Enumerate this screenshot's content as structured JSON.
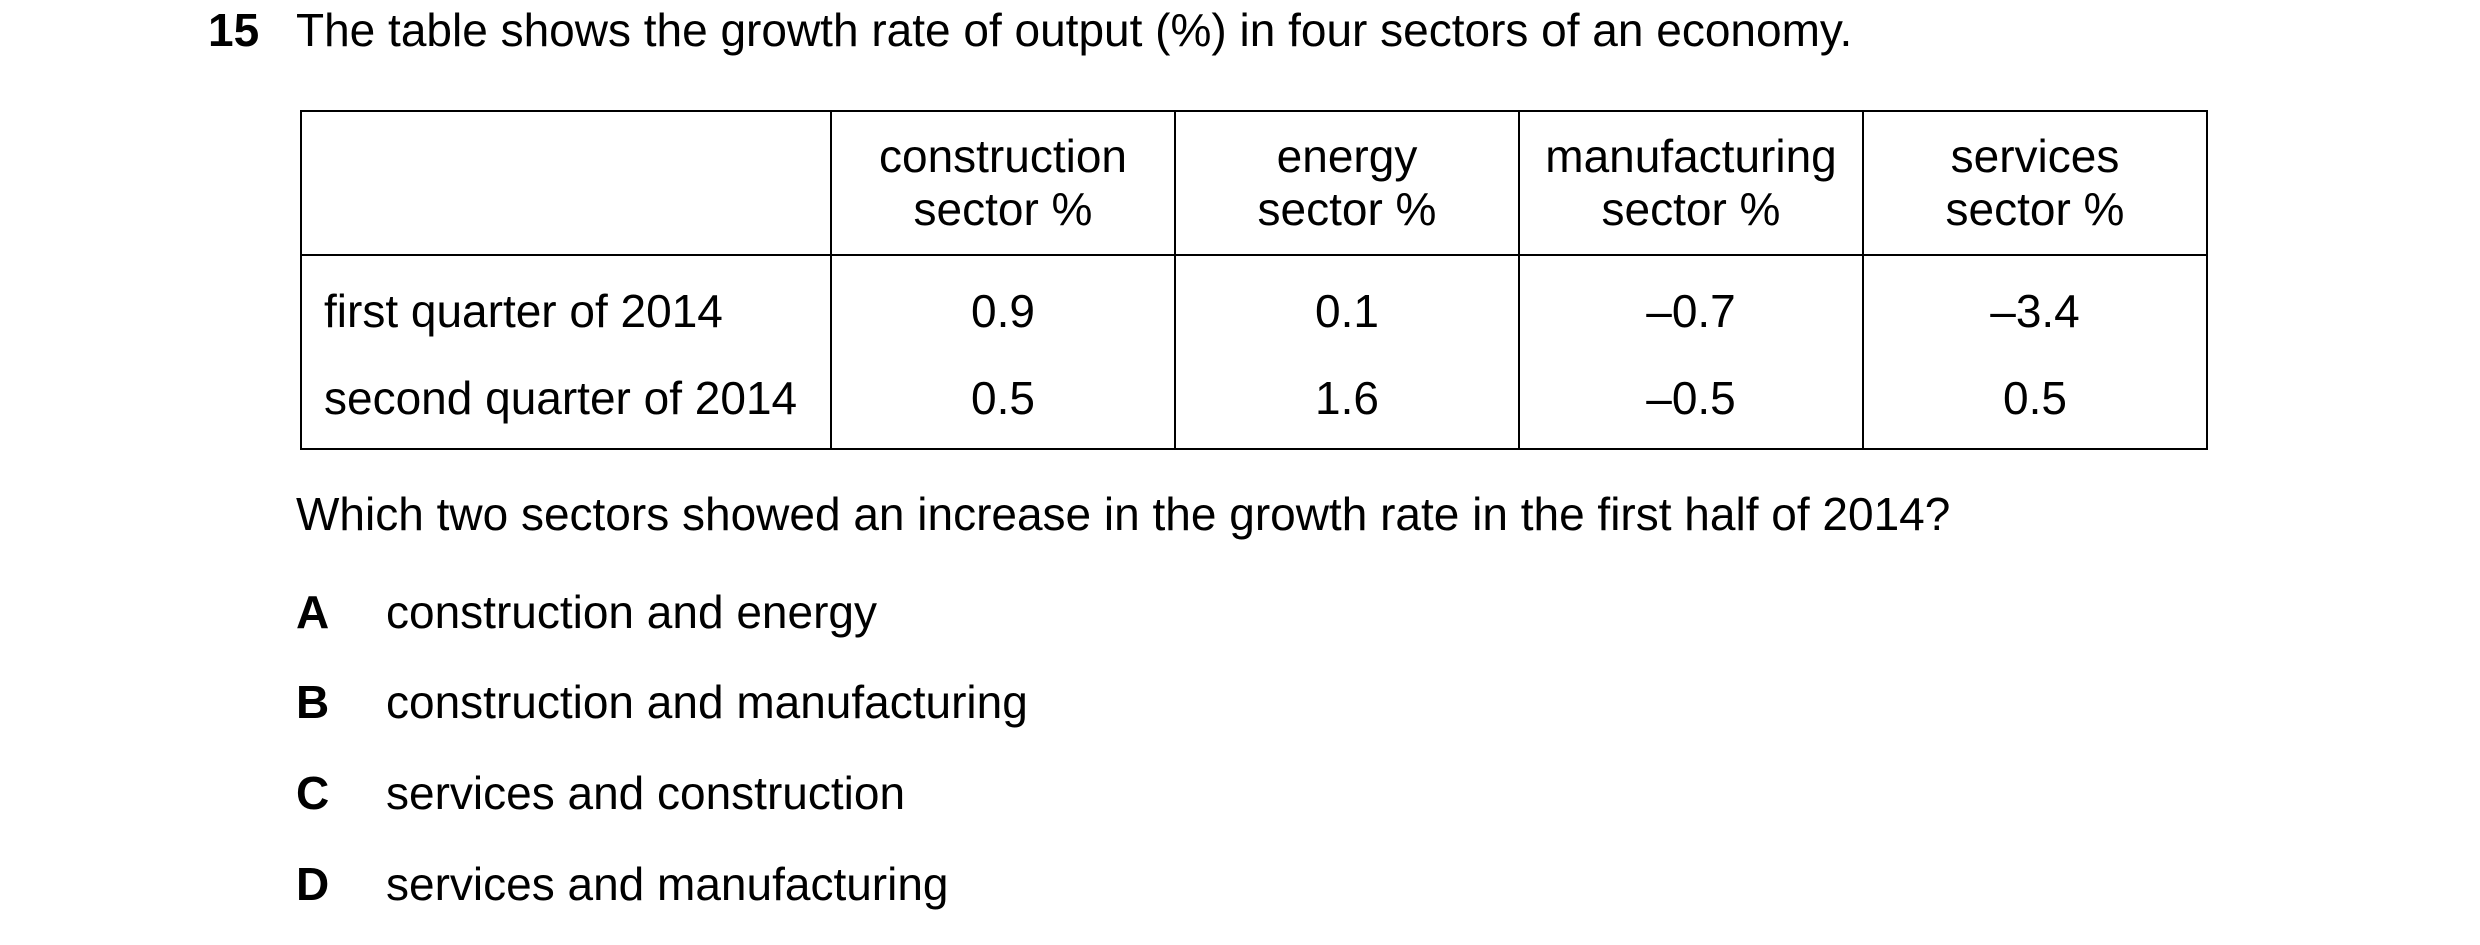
{
  "question": {
    "number": "15",
    "stem": "The table shows the growth rate of output (%) in four sectors of an economy.",
    "prompt": "Which two sectors showed an increase in the growth rate in the first half of 2014?"
  },
  "table": {
    "corner": "",
    "columns": [
      {
        "line1": "construction",
        "line2": "sector %"
      },
      {
        "line1": "energy",
        "line2": "sector %"
      },
      {
        "line1": "manufacturing",
        "line2": "sector %"
      },
      {
        "line1": "services",
        "line2": "sector %"
      }
    ],
    "rows": [
      {
        "label": "first quarter of 2014",
        "values": [
          "0.9",
          "0.1",
          "–0.7",
          "–3.4"
        ]
      },
      {
        "label": "second quarter of 2014",
        "values": [
          "0.5",
          "1.6",
          "–0.5",
          "0.5"
        ]
      }
    ]
  },
  "options": [
    {
      "letter": "A",
      "text": "construction and energy"
    },
    {
      "letter": "B",
      "text": "construction and manufacturing"
    },
    {
      "letter": "C",
      "text": "services and construction"
    },
    {
      "letter": "D",
      "text": "services and manufacturing"
    }
  ]
}
